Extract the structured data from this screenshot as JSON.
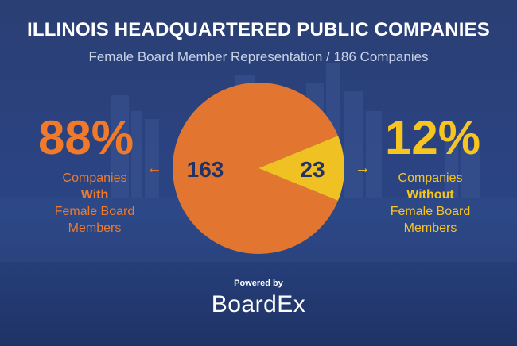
{
  "header": {
    "title": "ILLINOIS HEADQUARTERED PUBLIC COMPANIES",
    "subtitle": "Female Board Member Representation / 186 Companies"
  },
  "left": {
    "percent": "88%",
    "line1": "Companies",
    "line2": "With",
    "line3": "Female Board",
    "line4": "Members",
    "arrow": "←"
  },
  "right": {
    "percent": "12%",
    "line1": "Companies",
    "line2": "Without",
    "line3": "Female Board",
    "line4": "Members",
    "arrow": "→"
  },
  "footer": {
    "powered_by": "Powered by",
    "brand": "BoardEx"
  },
  "colors": {
    "background": "#2b4280",
    "with": "#f07a2a",
    "without": "#f7c520",
    "label_text": "#1f3366"
  },
  "chart_data": {
    "type": "pie",
    "title": "ILLINOIS HEADQUARTERED PUBLIC COMPANIES",
    "subtitle": "Female Board Member Representation / 186 Companies",
    "total": 186,
    "slices": [
      {
        "label": "Companies With Female Board Members",
        "value": 163,
        "percent": 88,
        "color": "#f07a2a",
        "value_label": "163"
      },
      {
        "label": "Companies Without Female Board Members",
        "value": 23,
        "percent": 12,
        "color": "#f7c520",
        "value_label": "23"
      }
    ]
  }
}
